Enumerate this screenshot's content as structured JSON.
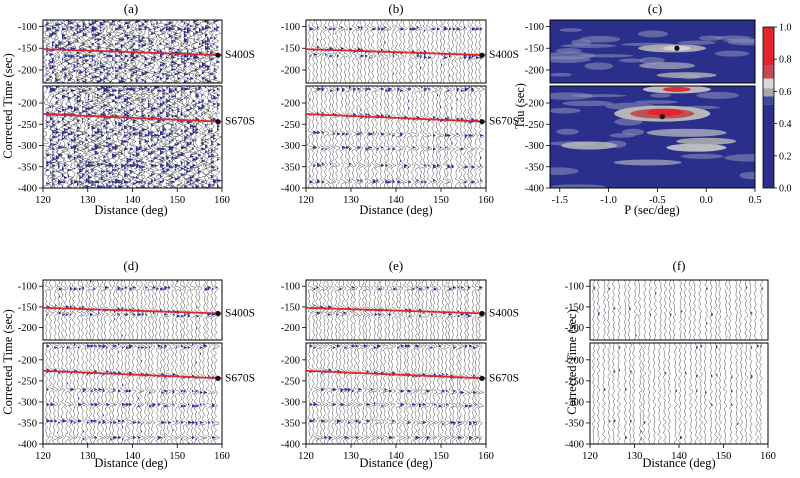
{
  "figure": {
    "panels": [
      {
        "id": "a",
        "label": "(a)",
        "ylabel": "Corrected Time (sec)",
        "xlabel": "Distance (deg)",
        "xticks": [
          "120",
          "130",
          "140",
          "150",
          "160"
        ],
        "top_yticks": [
          "-100",
          "-150",
          "-200"
        ],
        "bottom_yticks": [
          "-200",
          "-250",
          "-300",
          "-350",
          "-400"
        ],
        "phase_top": "S400S",
        "phase_bottom": "S670S",
        "noise": "heavy"
      },
      {
        "id": "b",
        "label": "(b)",
        "ylabel": "",
        "xlabel": "Distance (deg)",
        "xticks": [
          "120",
          "130",
          "140",
          "150",
          "160"
        ],
        "top_yticks": [
          "-100",
          "-150",
          "-200"
        ],
        "bottom_yticks": [
          "-200",
          "-250",
          "-300",
          "-350",
          "-400"
        ],
        "phase_top": "S400S",
        "phase_bottom": "S670S",
        "noise": "moderate"
      },
      {
        "id": "d",
        "label": "(d)",
        "ylabel": "Corrected Time (sec)",
        "xlabel": "Distance (deg)",
        "xticks": [
          "120",
          "130",
          "140",
          "150",
          "160"
        ],
        "top_yticks": [
          "-100",
          "-150",
          "-200"
        ],
        "bottom_yticks": [
          "-200",
          "-250",
          "-300",
          "-350",
          "-400"
        ],
        "phase_top": "S400S",
        "phase_bottom": "S670S",
        "noise": "moderate"
      },
      {
        "id": "e",
        "label": "(e)",
        "ylabel": "",
        "xlabel": "Distance (deg)",
        "xticks": [
          "120",
          "130",
          "140",
          "150",
          "160"
        ],
        "top_yticks": [
          "-100",
          "-150",
          "-200"
        ],
        "bottom_yticks": [
          "-200",
          "-250",
          "-300",
          "-350",
          "-400"
        ],
        "phase_top": "S400S",
        "phase_bottom": "S670S",
        "noise": "clean"
      },
      {
        "id": "f",
        "label": "(f)",
        "ylabel": "Corrected Time (sec)",
        "xlabel": "Distance (deg)",
        "xticks": [
          "120",
          "130",
          "140",
          "150",
          "160"
        ],
        "top_yticks": [
          "-100",
          "-150",
          "-200"
        ],
        "bottom_yticks": [
          "-200",
          "-250",
          "-300",
          "-350",
          "-400"
        ],
        "phase_top": "",
        "phase_bottom": "",
        "noise": "sparse"
      }
    ],
    "tau_p": {
      "label": "(c)",
      "ylabel": "Tau (sec)",
      "xlabel": "P (sec/deg)",
      "xticks": [
        "-1.5",
        "-1.0",
        "-0.5",
        "0.0",
        "0.5"
      ],
      "top_yticks": [
        "-100",
        "-150",
        "-200"
      ],
      "bottom_yticks": [
        "-200",
        "-250",
        "-300",
        "-350",
        "-400"
      ],
      "colorbar_ticks": [
        "1.0",
        "0.8",
        "0.6",
        "0.4",
        "0.2",
        "0.0"
      ]
    },
    "colors": {
      "wiggle": "#3a3a3a",
      "fill": "#2b2b9e",
      "arrival_line": "#e0262a",
      "phase_text": "#b01e2e",
      "taup_bg": "#2a2f8c",
      "cbar": [
        "#2a2f8c",
        "#3d4a9a",
        "#a9a9a9",
        "#d8d8d8",
        "#c24a52",
        "#e4242b"
      ]
    }
  }
}
